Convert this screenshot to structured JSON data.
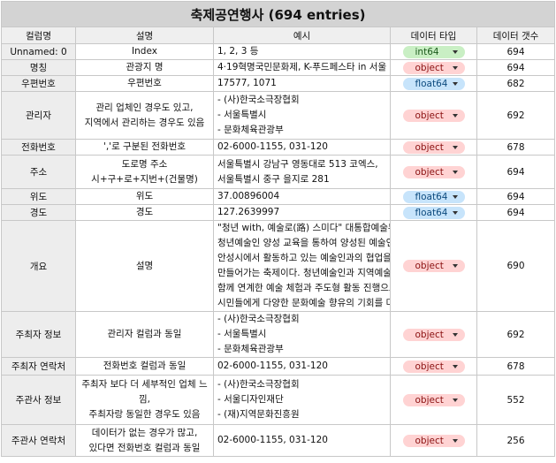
{
  "sheet": {
    "title": "축제공연행사 (694 entries)",
    "headers": [
      "컬럼명",
      "설명",
      "예시",
      "데이터 타입",
      "데이터 갯수"
    ],
    "colors": {
      "int64": "#c9efc4",
      "object": "#ffd3d3",
      "float64": "#c7e4fb"
    },
    "rows": [
      {
        "name": "Unnamed: 0",
        "desc": [
          "Index"
        ],
        "example": [
          "1, 2, 3 등"
        ],
        "dtype": "int64",
        "count": "694"
      },
      {
        "name": "명칭",
        "desc": [
          "관광지 명"
        ],
        "example": [
          "4·19혁명국민문화제, K-푸드페스타 in 서울"
        ],
        "dtype": "object",
        "count": "694"
      },
      {
        "name": "우편번호",
        "desc": [
          "우편번호"
        ],
        "example": [
          "17577, 1071"
        ],
        "dtype": "float64",
        "count": "682"
      },
      {
        "name": "관리자",
        "desc": [
          "관리 업체인 경우도 있고,",
          "지역에서 관리하는 경우도 있음"
        ],
        "example": [
          "- (사)한국소극장협회",
          "- 서울특별시",
          "- 문화체육관광부"
        ],
        "dtype": "object",
        "count": "692"
      },
      {
        "name": "전화번호",
        "desc": [
          "','로 구분된 전화번호"
        ],
        "example": [
          "02-6000-1155, 031-120"
        ],
        "dtype": "object",
        "count": "678"
      },
      {
        "name": "주소",
        "desc": [
          "도로명 주소",
          "시+구+로+지번+(건물명)"
        ],
        "example": [
          "서울특별시 강남구 영동대로 513 코엑스,",
          "서울특별시 중구 을지로 281"
        ],
        "dtype": "object",
        "count": "694"
      },
      {
        "name": "위도",
        "desc": [
          "위도"
        ],
        "example": [
          "37.00896004"
        ],
        "dtype": "float64",
        "count": "694"
      },
      {
        "name": "경도",
        "desc": [
          "경도"
        ],
        "example": [
          "127.2639997"
        ],
        "dtype": "float64",
        "count": "694"
      },
      {
        "name": "개요",
        "desc": [
          "설명"
        ],
        "example": [
          "\"청년 with, 예술로(路) 스미다\" 대통합예술무대",
          "청년예술인 양성 교육을 통하여 양성된 예술인들",
          "안성시에서 활동하고 있는 예술인과의 협업을 통",
          "만들어가는 축제이다. 청년예술인과 지역예술인",
          "함께 연계한 예술 체험과 주도형 활동 진행으로",
          "시민들에게 다양한 문화예술 향유의 기회를 마련"
        ],
        "dtype": "object",
        "count": "690"
      },
      {
        "name": "주최자 정보",
        "desc": [
          "관리자 컬럼과 동일"
        ],
        "example": [
          "- (사)한국소극장협회",
          "- 서울특별시",
          "- 문화체육관광부"
        ],
        "dtype": "object",
        "count": "692"
      },
      {
        "name": "주최자 연락처",
        "desc": [
          "전화번호 컬럼과 동일"
        ],
        "example": [
          "02-6000-1155, 031-120"
        ],
        "dtype": "object",
        "count": "678"
      },
      {
        "name": "주관사 정보",
        "desc": [
          "주최자 보다 더 세부적인 업체 느낌,",
          "주최자랑 동일한 경우도 있음"
        ],
        "example": [
          "- (사)한국소극장협회",
          "- 서울디자인재단",
          "- (재)지역문화진흥원"
        ],
        "dtype": "object",
        "count": "552"
      },
      {
        "name": "주관사 연락처",
        "desc": [
          "데이터가 없는 경우가 많고,",
          "있다면 전화번호 컬럼과 동일"
        ],
        "example": [
          "02-6000-1155, 031-120"
        ],
        "dtype": "object",
        "count": "256"
      }
    ]
  }
}
